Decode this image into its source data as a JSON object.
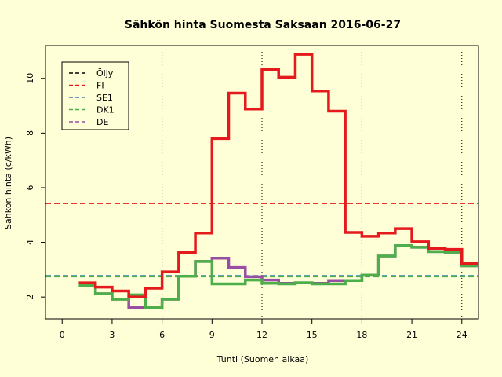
{
  "chart_data": {
    "type": "line",
    "step": true,
    "title": "Sähkön hinta Suomesta Saksaan 2016-06-27",
    "xlabel": "Tunti (Suomen aikaa)",
    "ylabel": "Sähkön hinta (c/kWh)",
    "xlim": [
      -1,
      25
    ],
    "ylim": [
      1.2,
      11.2
    ],
    "xticks": [
      0,
      3,
      6,
      9,
      12,
      15,
      18,
      21,
      24
    ],
    "yticks": [
      2,
      4,
      6,
      8,
      10
    ],
    "vlines": [
      6,
      12,
      18,
      24
    ],
    "legend_position": "top-left",
    "legend": [
      {
        "name": "Öljy",
        "color": "#000000"
      },
      {
        "name": "FI",
        "color": "#E41A1C"
      },
      {
        "name": "SE1",
        "color": "#377EB8"
      },
      {
        "name": "DK1",
        "color": "#4DAF4A"
      },
      {
        "name": "DE",
        "color": "#984EA3"
      }
    ],
    "hlines": [
      {
        "name": "FI",
        "value": 5.42,
        "color": "#E41A1C"
      },
      {
        "name": "SE1",
        "value": 2.78,
        "color": "#377EB8"
      },
      {
        "name": "DK1",
        "value": 2.74,
        "color": "#4DAF4A"
      }
    ],
    "hours": [
      1,
      2,
      3,
      4,
      5,
      6,
      7,
      8,
      9,
      10,
      11,
      12,
      13,
      14,
      15,
      16,
      17,
      18,
      19,
      20,
      21,
      22,
      23,
      24,
      25
    ],
    "series": [
      {
        "name": "DE",
        "color": "#984EA3",
        "values": [
          2.42,
          2.12,
          1.92,
          1.62,
          1.62,
          1.92,
          2.76,
          3.3,
          3.42,
          3.08,
          2.74,
          2.62,
          2.5,
          2.52,
          2.5,
          2.6,
          2.6,
          2.8,
          3.5,
          3.88,
          3.82,
          3.66,
          3.64,
          3.14,
          3.14
        ]
      },
      {
        "name": "DK1",
        "color": "#4DAF4A",
        "values": [
          2.42,
          2.12,
          1.92,
          2.08,
          1.62,
          1.92,
          2.76,
          3.3,
          2.48,
          2.48,
          2.62,
          2.5,
          2.48,
          2.52,
          2.48,
          2.48,
          2.6,
          2.8,
          3.5,
          3.88,
          3.82,
          3.66,
          3.64,
          3.14,
          3.14
        ]
      },
      {
        "name": "FI",
        "color": "#E41A1C",
        "values": [
          2.52,
          2.36,
          2.22,
          2.0,
          2.32,
          2.92,
          3.62,
          4.34,
          7.8,
          9.46,
          8.88,
          10.32,
          10.04,
          10.88,
          9.54,
          8.8,
          4.36,
          4.22,
          4.34,
          4.5,
          4.02,
          3.78,
          3.74,
          3.22,
          3.22
        ]
      }
    ]
  }
}
